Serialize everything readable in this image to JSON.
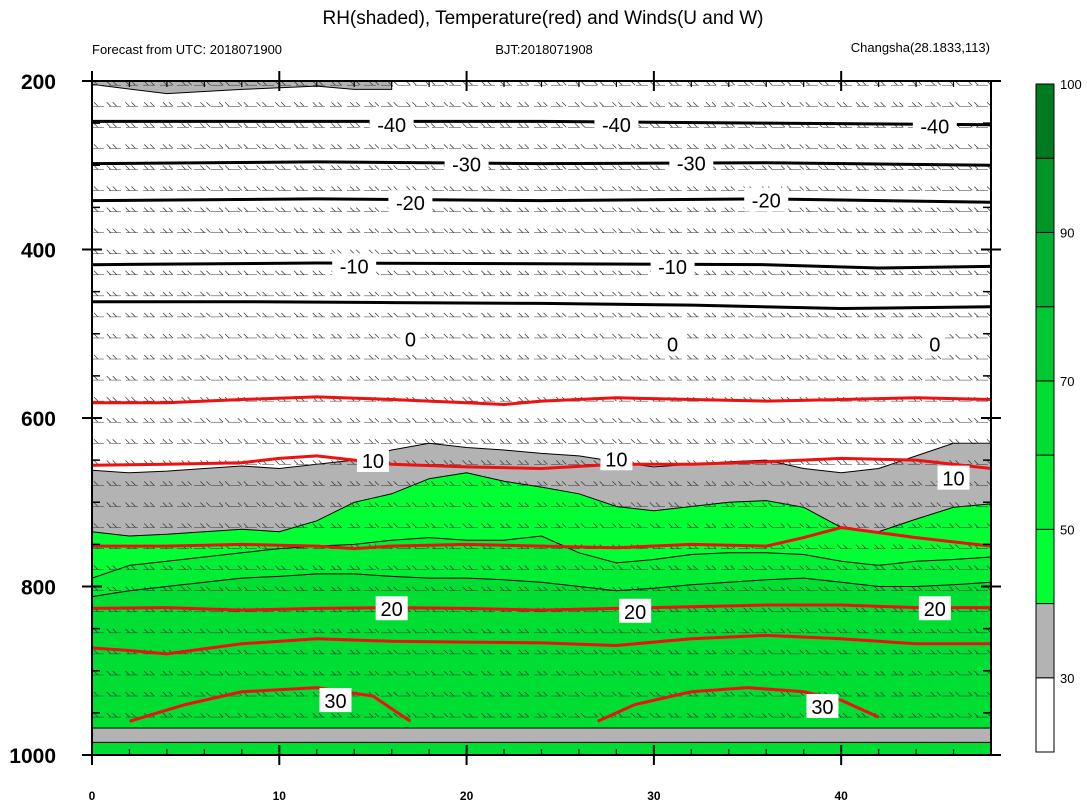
{
  "chart_data": {
    "type": "contour",
    "title": "RH(shaded), Temperature(red) and Winds(U and W)",
    "subtitle_left": "Forecast from UTC: 2018071900",
    "subtitle_center": "BJT:2018071908",
    "subtitle_right": "Changsha(28.1833,113)",
    "y_axis": {
      "min": 200,
      "max": 1000,
      "inverted": true,
      "ticks": [
        "200",
        "400",
        "600",
        "800",
        "1000"
      ],
      "tick_values": [
        200,
        400,
        600,
        800,
        1000
      ]
    },
    "x_axis": {
      "min": 0,
      "max": 48,
      "ticks": [
        "0",
        "10",
        "20",
        "30",
        "40"
      ],
      "tick_values": [
        0,
        10,
        20,
        30,
        40
      ]
    },
    "colorbar": {
      "labels": [
        "30",
        "50",
        "70",
        "90",
        "100"
      ],
      "levels": [
        30,
        40,
        50,
        60,
        70,
        80,
        90,
        95,
        100
      ],
      "colors": [
        "#ffffff",
        "#b3b3b3",
        "#00ff33",
        "#00ee33",
        "#00dd33",
        "#00c832",
        "#00b030",
        "#009626",
        "#007a1e"
      ]
    },
    "rh_bands": [
      {
        "level": "40",
        "color": "#b3b3b3",
        "top": [
          [
            0,
            204
          ],
          [
            4,
            215
          ],
          [
            8,
            210
          ],
          [
            12,
            206
          ],
          [
            14,
            210
          ],
          [
            16,
            210
          ],
          [
            16,
            208
          ]
        ],
        "bottom_closed": true
      },
      {
        "level": "40",
        "color": "#b3b3b3",
        "top": [
          [
            0,
            662
          ],
          [
            2,
            665
          ],
          [
            4,
            663
          ],
          [
            6,
            660
          ],
          [
            8,
            657
          ],
          [
            10,
            660
          ],
          [
            12,
            655
          ],
          [
            14,
            650
          ],
          [
            16,
            638
          ],
          [
            18,
            630
          ],
          [
            20,
            635
          ],
          [
            22,
            638
          ],
          [
            24,
            642
          ],
          [
            26,
            645
          ],
          [
            28,
            652
          ],
          [
            30,
            658
          ],
          [
            32,
            655
          ],
          [
            34,
            652
          ],
          [
            36,
            650
          ],
          [
            38,
            660
          ],
          [
            40,
            665
          ],
          [
            42,
            660
          ],
          [
            44,
            645
          ],
          [
            46,
            630
          ],
          [
            48,
            630
          ]
        ]
      },
      {
        "level": "50",
        "color": "#00ff33",
        "top": [
          [
            0,
            735
          ],
          [
            2,
            740
          ],
          [
            4,
            738
          ],
          [
            6,
            735
          ],
          [
            8,
            732
          ],
          [
            10,
            735
          ],
          [
            12,
            722
          ],
          [
            14,
            700
          ],
          [
            16,
            690
          ],
          [
            18,
            672
          ],
          [
            20,
            665
          ],
          [
            22,
            675
          ],
          [
            24,
            682
          ],
          [
            26,
            690
          ],
          [
            28,
            705
          ],
          [
            30,
            710
          ],
          [
            32,
            705
          ],
          [
            34,
            700
          ],
          [
            36,
            698
          ],
          [
            38,
            706
          ],
          [
            40,
            730
          ],
          [
            42,
            735
          ],
          [
            44,
            720
          ],
          [
            46,
            706
          ],
          [
            48,
            702
          ]
        ]
      },
      {
        "level": "60",
        "color": "#00ee33",
        "top": [
          [
            0,
            790
          ],
          [
            2,
            775
          ],
          [
            4,
            770
          ],
          [
            6,
            765
          ],
          [
            8,
            760
          ],
          [
            10,
            755
          ],
          [
            12,
            752
          ],
          [
            14,
            750
          ],
          [
            16,
            745
          ],
          [
            18,
            742
          ],
          [
            20,
            745
          ],
          [
            22,
            745
          ],
          [
            24,
            740
          ],
          [
            26,
            760
          ],
          [
            28,
            772
          ],
          [
            30,
            768
          ],
          [
            32,
            762
          ],
          [
            34,
            760
          ],
          [
            36,
            760
          ],
          [
            38,
            762
          ],
          [
            40,
            770
          ],
          [
            42,
            775
          ],
          [
            44,
            770
          ],
          [
            46,
            768
          ],
          [
            48,
            765
          ]
        ]
      },
      {
        "level": "70",
        "color": "#00dd33",
        "top": [
          [
            0,
            812
          ],
          [
            2,
            805
          ],
          [
            4,
            800
          ],
          [
            6,
            795
          ],
          [
            8,
            790
          ],
          [
            10,
            788
          ],
          [
            12,
            785
          ],
          [
            14,
            785
          ],
          [
            16,
            788
          ],
          [
            18,
            790
          ],
          [
            20,
            790
          ],
          [
            22,
            792
          ],
          [
            24,
            795
          ],
          [
            26,
            800
          ],
          [
            28,
            805
          ],
          [
            30,
            802
          ],
          [
            32,
            798
          ],
          [
            34,
            795
          ],
          [
            36,
            792
          ],
          [
            38,
            790
          ],
          [
            40,
            795
          ],
          [
            42,
            800
          ],
          [
            44,
            800
          ],
          [
            46,
            798
          ],
          [
            48,
            795
          ]
        ]
      }
    ],
    "temperature_red": [
      {
        "label": "10",
        "points": [
          [
            0,
            582
          ],
          [
            4,
            582
          ],
          [
            8,
            578
          ],
          [
            12,
            575
          ],
          [
            16,
            578
          ],
          [
            20,
            582
          ],
          [
            22,
            584
          ],
          [
            24,
            580
          ],
          [
            28,
            576
          ],
          [
            32,
            578
          ],
          [
            36,
            580
          ],
          [
            40,
            578
          ],
          [
            44,
            576
          ],
          [
            48,
            578
          ]
        ]
      },
      {
        "label": "10",
        "points": [
          [
            0,
            656
          ],
          [
            4,
            655
          ],
          [
            8,
            653
          ],
          [
            10,
            648
          ],
          [
            12,
            645
          ],
          [
            14,
            650
          ],
          [
            16,
            655
          ],
          [
            20,
            658
          ],
          [
            24,
            660
          ],
          [
            28,
            655
          ],
          [
            32,
            655
          ],
          [
            36,
            652
          ],
          [
            40,
            648
          ],
          [
            44,
            650
          ],
          [
            48,
            660
          ]
        ]
      },
      {
        "label": "",
        "points": [
          [
            0,
            752
          ],
          [
            4,
            752
          ],
          [
            8,
            750
          ],
          [
            12,
            752
          ],
          [
            14,
            755
          ],
          [
            16,
            752
          ],
          [
            20,
            750
          ],
          [
            24,
            752
          ],
          [
            28,
            754
          ],
          [
            32,
            750
          ],
          [
            36,
            752
          ],
          [
            38,
            742
          ],
          [
            40,
            730
          ],
          [
            44,
            742
          ],
          [
            48,
            752
          ]
        ]
      },
      {
        "label": "20",
        "points": [
          [
            0,
            826
          ],
          [
            4,
            825
          ],
          [
            8,
            828
          ],
          [
            12,
            826
          ],
          [
            16,
            825
          ],
          [
            20,
            826
          ],
          [
            24,
            828
          ],
          [
            28,
            826
          ],
          [
            32,
            824
          ],
          [
            36,
            822
          ],
          [
            40,
            822
          ],
          [
            44,
            825
          ],
          [
            48,
            825
          ]
        ]
      },
      {
        "label": "",
        "points": [
          [
            0,
            873
          ],
          [
            2,
            876
          ],
          [
            4,
            880
          ],
          [
            8,
            868
          ],
          [
            12,
            862
          ],
          [
            16,
            865
          ],
          [
            20,
            866
          ],
          [
            24,
            867
          ],
          [
            28,
            870
          ],
          [
            32,
            862
          ],
          [
            36,
            858
          ],
          [
            40,
            862
          ],
          [
            44,
            868
          ],
          [
            48,
            868
          ]
        ]
      },
      {
        "label": "30",
        "points": [
          [
            2,
            960
          ],
          [
            5,
            940
          ],
          [
            8,
            925
          ],
          [
            12,
            920
          ],
          [
            15,
            930
          ],
          [
            16,
            945
          ],
          [
            17,
            960
          ]
        ]
      },
      {
        "label": "30",
        "points": [
          [
            27,
            960
          ],
          [
            29,
            940
          ],
          [
            32,
            925
          ],
          [
            35,
            920
          ],
          [
            38,
            925
          ],
          [
            40,
            935
          ],
          [
            42,
            955
          ]
        ]
      }
    ],
    "temperature_black": [
      {
        "label": "-40",
        "points": [
          [
            0,
            248
          ],
          [
            12,
            248
          ],
          [
            24,
            248
          ],
          [
            36,
            250
          ],
          [
            48,
            252
          ]
        ]
      },
      {
        "label": "-30",
        "points": [
          [
            0,
            298
          ],
          [
            12,
            296
          ],
          [
            24,
            298
          ],
          [
            36,
            297
          ],
          [
            48,
            300
          ]
        ]
      },
      {
        "label": "-20",
        "points": [
          [
            0,
            342
          ],
          [
            12,
            340
          ],
          [
            24,
            342
          ],
          [
            36,
            340
          ],
          [
            48,
            344
          ]
        ]
      },
      {
        "label": "-10",
        "points": [
          [
            0,
            418
          ],
          [
            12,
            416
          ],
          [
            24,
            417
          ],
          [
            36,
            418
          ],
          [
            42,
            422
          ],
          [
            48,
            420
          ]
        ]
      },
      {
        "label": "0",
        "points": [
          [
            0,
            462
          ],
          [
            8,
            462
          ],
          [
            16,
            463
          ],
          [
            24,
            464
          ],
          [
            32,
            466
          ],
          [
            40,
            470
          ],
          [
            48,
            468
          ]
        ]
      }
    ],
    "contour_labels": [
      {
        "text": "-40",
        "x": 16,
        "y": 252
      },
      {
        "text": "-40",
        "x": 28,
        "y": 252
      },
      {
        "text": "-40",
        "x": 45,
        "y": 254
      },
      {
        "text": "-30",
        "x": 20,
        "y": 299
      },
      {
        "text": "-30",
        "x": 32,
        "y": 298
      },
      {
        "text": "-20",
        "x": 17,
        "y": 345
      },
      {
        "text": "-20",
        "x": 36,
        "y": 342
      },
      {
        "text": "-10",
        "x": 14,
        "y": 420
      },
      {
        "text": "-10",
        "x": 31,
        "y": 421
      },
      {
        "text": "0",
        "x": 17,
        "y": 507
      },
      {
        "text": "0",
        "x": 31,
        "y": 513
      },
      {
        "text": "0",
        "x": 45,
        "y": 513
      },
      {
        "text": "10",
        "x": 15,
        "y": 651
      },
      {
        "text": "10",
        "x": 28,
        "y": 649
      },
      {
        "text": "10",
        "x": 46,
        "y": 672
      },
      {
        "text": "20",
        "x": 16,
        "y": 827
      },
      {
        "text": "20",
        "x": 29,
        "y": 830
      },
      {
        "text": "20",
        "x": 45,
        "y": 827
      },
      {
        "text": "30",
        "x": 13,
        "y": 936
      },
      {
        "text": "30",
        "x": 39,
        "y": 943
      }
    ]
  }
}
